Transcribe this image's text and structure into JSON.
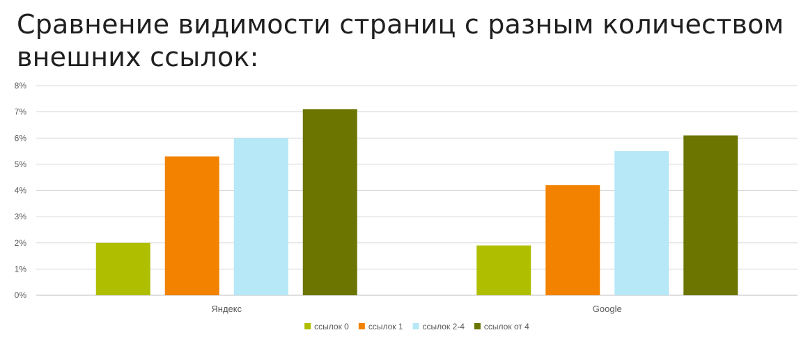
{
  "chart_data": {
    "type": "bar",
    "title": "Сравнение видимости страниц с разным количеством внешних ссылок:",
    "categories": [
      "Яндекс",
      "Google"
    ],
    "series": [
      {
        "name": "ссылок 0",
        "color": "#b0be00",
        "values": [
          2.0,
          1.9
        ]
      },
      {
        "name": "ссылок 1",
        "color": "#f28200",
        "values": [
          5.3,
          4.2
        ]
      },
      {
        "name": "ссылок 2-4",
        "color": "#b6e8f7",
        "values": [
          6.0,
          5.5
        ]
      },
      {
        "name": "ссылок от 4",
        "color": "#6b7500",
        "values": [
          7.1,
          6.1
        ]
      }
    ],
    "y_ticks": [
      "0%",
      "1%",
      "2%",
      "3%",
      "4%",
      "5%",
      "6%",
      "7%",
      "8%"
    ],
    "ylim": [
      0,
      8
    ],
    "y_unit": "%",
    "grid": true,
    "legend_position": "bottom"
  }
}
